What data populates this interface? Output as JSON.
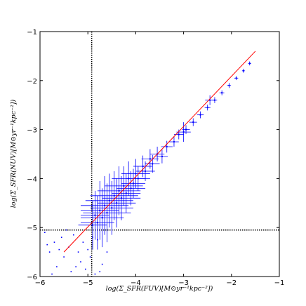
{
  "chart_data": {
    "type": "scatter",
    "xlabel": "log(Σ_SFR(FUV)[M⊙yr⁻¹kpc⁻²])",
    "ylabel": "log(Σ_SFR(NUV)[M⊙yr⁻¹kpc⁻²])",
    "xlim": [
      -6,
      -1
    ],
    "ylim": [
      -6,
      -1
    ],
    "xticks": [
      {
        "value": -6,
        "label": "−6"
      },
      {
        "value": -5,
        "label": "−5"
      },
      {
        "value": -4,
        "label": "−4"
      },
      {
        "value": -3,
        "label": "−3"
      },
      {
        "value": -2,
        "label": "−2"
      },
      {
        "value": -1,
        "label": "−1"
      }
    ],
    "yticks": [
      {
        "value": -6,
        "label": "−6"
      },
      {
        "value": -5,
        "label": "−5"
      },
      {
        "value": -4,
        "label": "−4"
      },
      {
        "value": -3,
        "label": "−3"
      },
      {
        "value": -2,
        "label": "−2"
      },
      {
        "value": -1,
        "label": "−1"
      }
    ],
    "vline": -4.92,
    "hline": -5.05,
    "fit_line": {
      "color": "#ff0000",
      "x": [
        -5.5,
        -1.5
      ],
      "y": [
        -5.5,
        -1.4
      ]
    },
    "series": [
      {
        "color": "#0000ff",
        "x": [
          -1.62,
          -1.75,
          -1.9,
          -2.05,
          -2.2,
          -2.35,
          -2.5,
          -2.65,
          -2.8,
          -2.95,
          -3.1,
          -3.2,
          -3.35,
          -3.45,
          -3.55,
          -3.65,
          -3.7,
          -3.8,
          -3.85,
          -3.95,
          -4.0,
          -4.05,
          -4.1,
          -4.15,
          -4.2,
          -4.25,
          -4.3,
          -4.35,
          -4.4,
          -4.45,
          -4.5,
          -4.55,
          -4.6,
          -4.65,
          -4.7,
          -4.75,
          -4.8,
          -4.85,
          -4.9,
          -3.0,
          -2.45
        ],
        "values": [
          -1.65,
          -1.8,
          -1.95,
          -2.1,
          -2.25,
          -2.4,
          -2.55,
          -2.7,
          -2.85,
          -3.0,
          -3.1,
          -3.25,
          -3.35,
          -3.55,
          -3.5,
          -3.7,
          -3.6,
          -3.85,
          -3.75,
          -4.0,
          -3.9,
          -4.1,
          -4.2,
          -4.0,
          -4.3,
          -4.15,
          -4.4,
          -4.25,
          -4.5,
          -4.35,
          -4.6,
          -4.45,
          -4.7,
          -4.55,
          -4.8,
          -4.65,
          -4.9,
          -4.75,
          -4.95,
          -3.05,
          -2.4
        ],
        "xerr": [
          0.03,
          0.03,
          0.04,
          0.04,
          0.05,
          0.05,
          0.06,
          0.07,
          0.08,
          0.08,
          0.1,
          0.1,
          0.12,
          0.12,
          0.15,
          0.15,
          0.18,
          0.2,
          0.2,
          0.25,
          0.3,
          0.25,
          0.3,
          0.35,
          0.3,
          0.4,
          0.4,
          0.45,
          0.4,
          0.5,
          0.45,
          0.5,
          0.5,
          0.5,
          0.45,
          0.4,
          0.35,
          0.3,
          0.3,
          0.15,
          0.1
        ],
        "yerr": [
          0.04,
          0.04,
          0.04,
          0.05,
          0.05,
          0.06,
          0.06,
          0.07,
          0.08,
          0.09,
          0.1,
          0.1,
          0.12,
          0.14,
          0.15,
          0.18,
          0.2,
          0.2,
          0.22,
          0.25,
          0.3,
          0.3,
          0.35,
          0.35,
          0.4,
          0.4,
          0.45,
          0.5,
          0.5,
          0.5,
          0.55,
          0.55,
          0.6,
          0.6,
          0.6,
          0.6,
          0.55,
          0.5,
          0.5,
          0.2,
          0.1
        ]
      },
      {
        "color": "#0000ff",
        "x": [
          -5.9,
          -5.8,
          -5.7,
          -5.65,
          -5.55,
          -5.5,
          -5.4,
          -5.35,
          -5.3,
          -5.2,
          -5.15,
          -5.1,
          -5.05,
          -5.0,
          -4.95,
          -4.85,
          -4.8,
          -4.7,
          -4.6,
          -5.75,
          -5.45,
          -5.25,
          -5.6,
          -5.85,
          -4.9,
          -4.75
        ],
        "values": [
          -5.1,
          -5.5,
          -5.3,
          -5.8,
          -5.2,
          -5.6,
          -5.4,
          -5.9,
          -5.15,
          -5.5,
          -5.7,
          -5.3,
          -5.85,
          -5.45,
          -5.6,
          -5.95,
          -5.25,
          -5.75,
          -5.5,
          -5.95,
          -5.05,
          -5.8,
          -5.45,
          -5.35,
          -5.2,
          -5.9
        ]
      }
    ]
  }
}
